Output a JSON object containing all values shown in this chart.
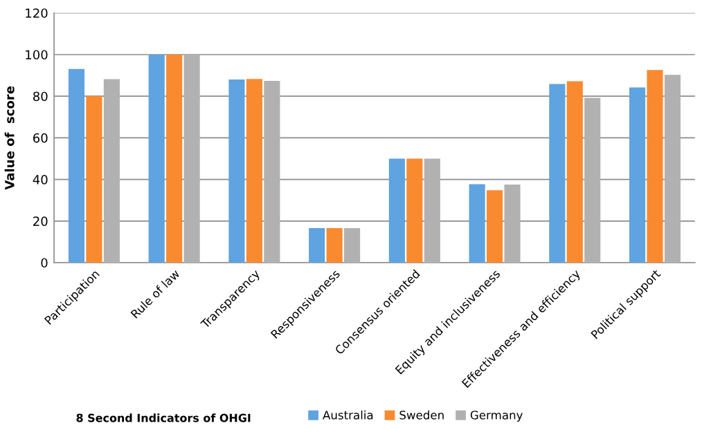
{
  "chart_data": {
    "type": "bar",
    "ylabel": "Value of  score",
    "xlabel": "8 Second Indicators of OHGI",
    "categories": [
      "Participation",
      "Rule of law",
      "Transparency",
      "Responsiveness",
      "Consensus oriented",
      "Equity and inclusiveness",
      "Effectiveness and efficiency",
      "Political support"
    ],
    "series": [
      {
        "name": "Australia",
        "color": "#5fa3e0",
        "values": [
          93.1,
          100,
          88,
          16.6,
          50,
          37.7,
          85.9,
          84.2
        ]
      },
      {
        "name": "Sweden",
        "color": "#f98a30",
        "values": [
          80.1,
          100,
          88.3,
          16.6,
          50,
          34.8,
          87.2,
          92.6
        ]
      },
      {
        "name": "Germany",
        "color": "#b1b1b1",
        "values": [
          88.2,
          100,
          87.4,
          16.6,
          50,
          37.5,
          79.2,
          90.3
        ]
      }
    ],
    "ylim": [
      0,
      120
    ],
    "yticks": [
      0,
      20,
      40,
      60,
      80,
      100,
      120
    ],
    "grid": "y",
    "legend": "bottom"
  }
}
